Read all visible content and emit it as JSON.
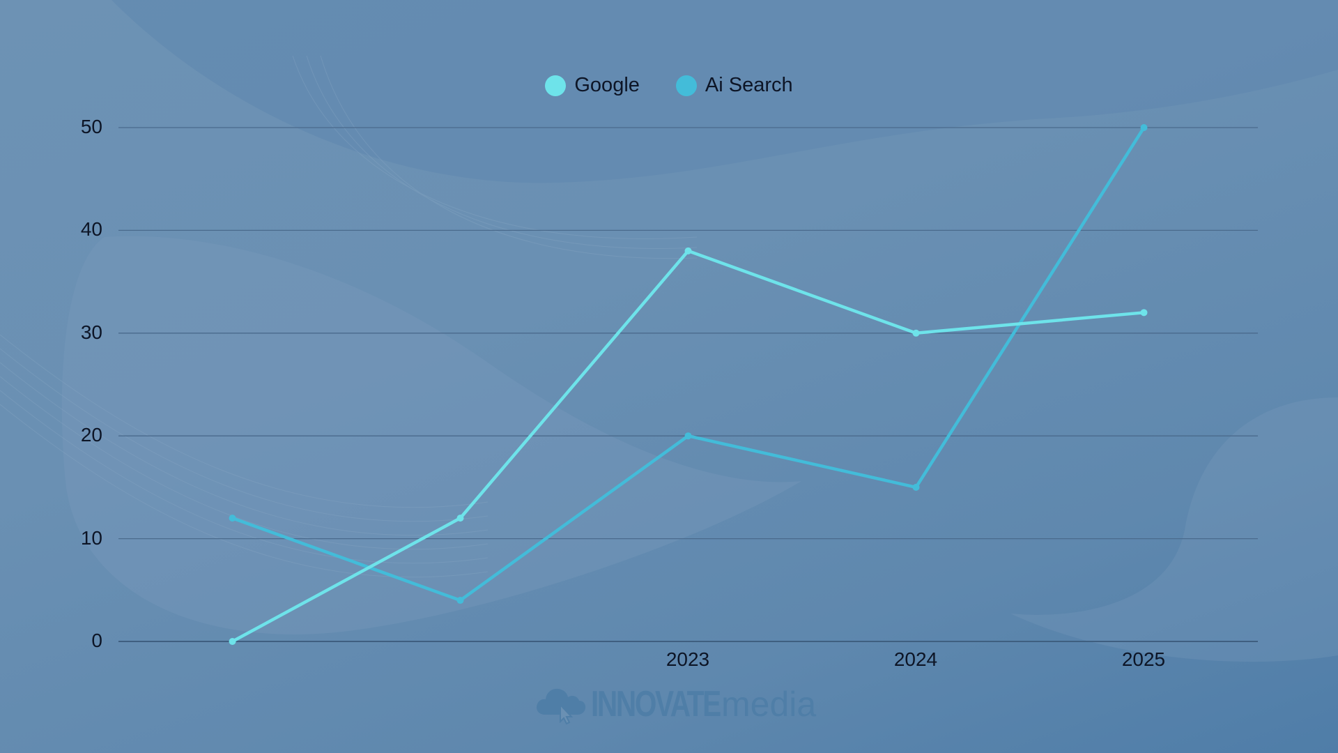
{
  "chart_data": {
    "type": "line",
    "title": "",
    "categories": [
      "",
      "",
      "2023",
      "2024",
      "2025"
    ],
    "series": [
      {
        "name": "Google",
        "color": "#6ee3ea",
        "values": [
          0,
          12,
          38,
          30,
          32
        ]
      },
      {
        "name": "Ai Search",
        "color": "#43bcd9",
        "values": [
          12,
          4,
          20,
          15,
          50
        ]
      }
    ],
    "xlabel": "",
    "ylabel": "",
    "ylim": [
      0,
      50
    ],
    "yticks": [
      0,
      10,
      20,
      30,
      40,
      50
    ],
    "grid": true,
    "legend_position": "top"
  },
  "legend": {
    "items": [
      {
        "label": "Google",
        "color": "#6ee3ea"
      },
      {
        "label": "Ai Search",
        "color": "#43bcd9"
      }
    ]
  },
  "axis": {
    "y_labels": [
      "50",
      "40",
      "30",
      "20",
      "10",
      "0"
    ],
    "x_labels": [
      "",
      "",
      "2023",
      "2024",
      "2025"
    ]
  },
  "branding": {
    "logo_bold": "INNOVATE",
    "logo_light": "media",
    "logo_icon": "cloud-cursor-icon"
  }
}
